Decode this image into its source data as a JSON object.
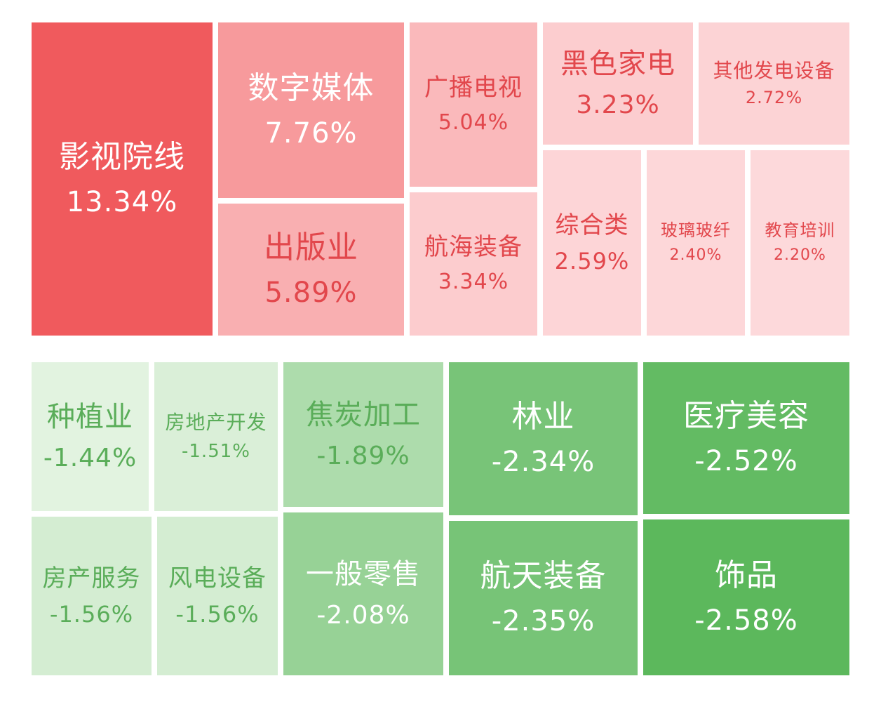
{
  "chart_data": {
    "type": "treemap",
    "unit": "%",
    "colors": {
      "up_strong": "#f05a5d",
      "up_weak": "#fdd9db",
      "down_weak": "#e2f3e0",
      "down_strong": "#5cb85c",
      "text_light": "#ffffff",
      "text_up_dark": "#e2474c",
      "text_down_dark": "#5aad59"
    },
    "gainers": [
      {
        "name": "影视院线",
        "label": "13.34%",
        "value": 13.34
      },
      {
        "name": "数字媒体",
        "label": "7.76%",
        "value": 7.76
      },
      {
        "name": "出版业",
        "label": "5.89%",
        "value": 5.89
      },
      {
        "name": "广播电视",
        "label": "5.04%",
        "value": 5.04
      },
      {
        "name": "航海装备",
        "label": "3.34%",
        "value": 3.34
      },
      {
        "name": "黑色家电",
        "label": "3.23%",
        "value": 3.23
      },
      {
        "name": "其他发电设备",
        "label": "2.72%",
        "value": 2.72
      },
      {
        "name": "综合类",
        "label": "2.59%",
        "value": 2.59
      },
      {
        "name": "玻璃玻纤",
        "label": "2.40%",
        "value": 2.4
      },
      {
        "name": "教育培训",
        "label": "2.20%",
        "value": 2.2
      }
    ],
    "losers": [
      {
        "name": "种植业",
        "label": "-1.44%",
        "value": -1.44
      },
      {
        "name": "房地产开发",
        "label": "-1.51%",
        "value": -1.51
      },
      {
        "name": "房产服务",
        "label": "-1.56%",
        "value": -1.56
      },
      {
        "name": "风电设备",
        "label": "-1.56%",
        "value": -1.56
      },
      {
        "name": "焦炭加工",
        "label": "-1.89%",
        "value": -1.89
      },
      {
        "name": "一般零售",
        "label": "-2.08%",
        "value": -2.08
      },
      {
        "name": "林业",
        "label": "-2.34%",
        "value": -2.34
      },
      {
        "name": "航天装备",
        "label": "-2.35%",
        "value": -2.35
      },
      {
        "name": "医疗美容",
        "label": "-2.52%",
        "value": -2.52
      },
      {
        "name": "饰品",
        "label": "-2.58%",
        "value": -2.58
      }
    ]
  }
}
